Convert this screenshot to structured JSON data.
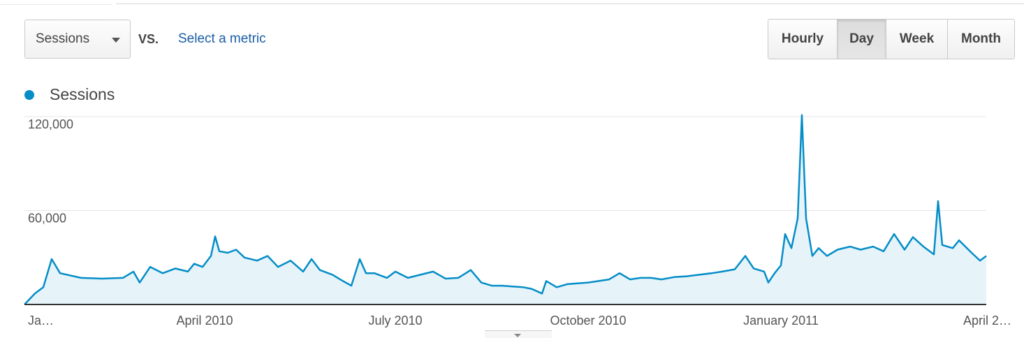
{
  "toolbar": {
    "metric_select_value": "Sessions",
    "vs_label": "VS.",
    "select_metric_link": "Select a metric",
    "granularity_buttons": [
      {
        "label": "Hourly",
        "active": false
      },
      {
        "label": "Day",
        "active": true
      },
      {
        "label": "Week",
        "active": false
      },
      {
        "label": "Month",
        "active": false
      }
    ]
  },
  "legend": {
    "series_label": "Sessions",
    "series_color": "#058dc7"
  },
  "colors": {
    "line": "#058dc7",
    "area_fill": "#e6f4fa",
    "gridline": "#e5e5e5",
    "baseline": "#333333"
  },
  "chart_data": {
    "type": "area",
    "title": "",
    "xlabel": "",
    "ylabel": "",
    "ylim": [
      0,
      120000
    ],
    "y_ticks": [
      {
        "value": 60000,
        "label": "60,000"
      },
      {
        "value": 120000,
        "label": "120,000"
      }
    ],
    "x_ticks": [
      {
        "date": "2010-01-01",
        "label": "Ja…"
      },
      {
        "date": "2010-04-01",
        "label": "April 2010"
      },
      {
        "date": "2010-07-01",
        "label": "July 2010"
      },
      {
        "date": "2010-10-01",
        "label": "October 2010"
      },
      {
        "date": "2011-01-01",
        "label": "January 2011"
      },
      {
        "date": "2011-04-01",
        "label": "April 2…"
      }
    ],
    "grid": true,
    "legend_position": "top-left",
    "series": [
      {
        "name": "Sessions",
        "points": [
          [
            "2010-01-05",
            0
          ],
          [
            "2010-01-10",
            7000
          ],
          [
            "2010-01-14",
            11000
          ],
          [
            "2010-01-18",
            29000
          ],
          [
            "2010-01-22",
            20000
          ],
          [
            "2010-02-01",
            17000
          ],
          [
            "2010-02-11",
            16500
          ],
          [
            "2010-02-21",
            17000
          ],
          [
            "2010-02-26",
            21000
          ],
          [
            "2010-03-01",
            14000
          ],
          [
            "2010-03-06",
            24000
          ],
          [
            "2010-03-12",
            20000
          ],
          [
            "2010-03-18",
            23000
          ],
          [
            "2010-03-24",
            21000
          ],
          [
            "2010-03-27",
            26000
          ],
          [
            "2010-03-31",
            24000
          ],
          [
            "2010-04-04",
            31000
          ],
          [
            "2010-04-06",
            43500
          ],
          [
            "2010-04-08",
            34000
          ],
          [
            "2010-04-12",
            33000
          ],
          [
            "2010-04-16",
            35000
          ],
          [
            "2010-04-20",
            30000
          ],
          [
            "2010-04-26",
            28000
          ],
          [
            "2010-05-01",
            31000
          ],
          [
            "2010-05-06",
            24000
          ],
          [
            "2010-05-12",
            28000
          ],
          [
            "2010-05-18",
            21000
          ],
          [
            "2010-05-22",
            29000
          ],
          [
            "2010-05-26",
            22000
          ],
          [
            "2010-06-01",
            19000
          ],
          [
            "2010-06-06",
            15000
          ],
          [
            "2010-06-10",
            12000
          ],
          [
            "2010-06-14",
            29000
          ],
          [
            "2010-06-17",
            20000
          ],
          [
            "2010-06-21",
            20000
          ],
          [
            "2010-06-27",
            17000
          ],
          [
            "2010-07-01",
            21000
          ],
          [
            "2010-07-07",
            17000
          ],
          [
            "2010-07-13",
            19000
          ],
          [
            "2010-07-19",
            21000
          ],
          [
            "2010-07-25",
            16500
          ],
          [
            "2010-07-31",
            17000
          ],
          [
            "2010-08-06",
            22000
          ],
          [
            "2010-08-11",
            14000
          ],
          [
            "2010-08-16",
            12000
          ],
          [
            "2010-08-21",
            12000
          ],
          [
            "2010-08-26",
            11500
          ],
          [
            "2010-08-31",
            11000
          ],
          [
            "2010-09-04",
            10000
          ],
          [
            "2010-09-09",
            7000
          ],
          [
            "2010-09-11",
            15000
          ],
          [
            "2010-09-16",
            11000
          ],
          [
            "2010-09-21",
            13000
          ],
          [
            "2010-09-26",
            13500
          ],
          [
            "2010-10-01",
            14000
          ],
          [
            "2010-10-06",
            15000
          ],
          [
            "2010-10-11",
            16000
          ],
          [
            "2010-10-16",
            20000
          ],
          [
            "2010-10-21",
            16000
          ],
          [
            "2010-10-26",
            17000
          ],
          [
            "2010-10-31",
            17000
          ],
          [
            "2010-11-05",
            16000
          ],
          [
            "2010-11-11",
            17500
          ],
          [
            "2010-11-17",
            18000
          ],
          [
            "2010-11-23",
            19000
          ],
          [
            "2010-11-29",
            20000
          ],
          [
            "2010-12-04",
            21000
          ],
          [
            "2010-12-10",
            22500
          ],
          [
            "2010-12-15",
            31000
          ],
          [
            "2010-12-19",
            23000
          ],
          [
            "2010-12-24",
            21000
          ],
          [
            "2010-12-26",
            14000
          ],
          [
            "2010-12-29",
            20000
          ],
          [
            "2011-01-01",
            25000
          ],
          [
            "2011-01-03",
            45000
          ],
          [
            "2011-01-06",
            36000
          ],
          [
            "2011-01-09",
            55000
          ],
          [
            "2011-01-11",
            121000
          ],
          [
            "2011-01-13",
            55000
          ],
          [
            "2011-01-16",
            31000
          ],
          [
            "2011-01-19",
            36000
          ],
          [
            "2011-01-23",
            31000
          ],
          [
            "2011-01-28",
            35000
          ],
          [
            "2011-02-03",
            37000
          ],
          [
            "2011-02-08",
            35000
          ],
          [
            "2011-02-14",
            37000
          ],
          [
            "2011-02-19",
            34000
          ],
          [
            "2011-02-24",
            45000
          ],
          [
            "2011-03-01",
            35000
          ],
          [
            "2011-03-05",
            43000
          ],
          [
            "2011-03-10",
            37000
          ],
          [
            "2011-03-15",
            32000
          ],
          [
            "2011-03-17",
            66000
          ],
          [
            "2011-03-19",
            38000
          ],
          [
            "2011-03-24",
            36000
          ],
          [
            "2011-03-27",
            41000
          ],
          [
            "2011-04-02",
            33000
          ],
          [
            "2011-04-06",
            28000
          ],
          [
            "2011-04-09",
            31000
          ]
        ]
      }
    ]
  }
}
